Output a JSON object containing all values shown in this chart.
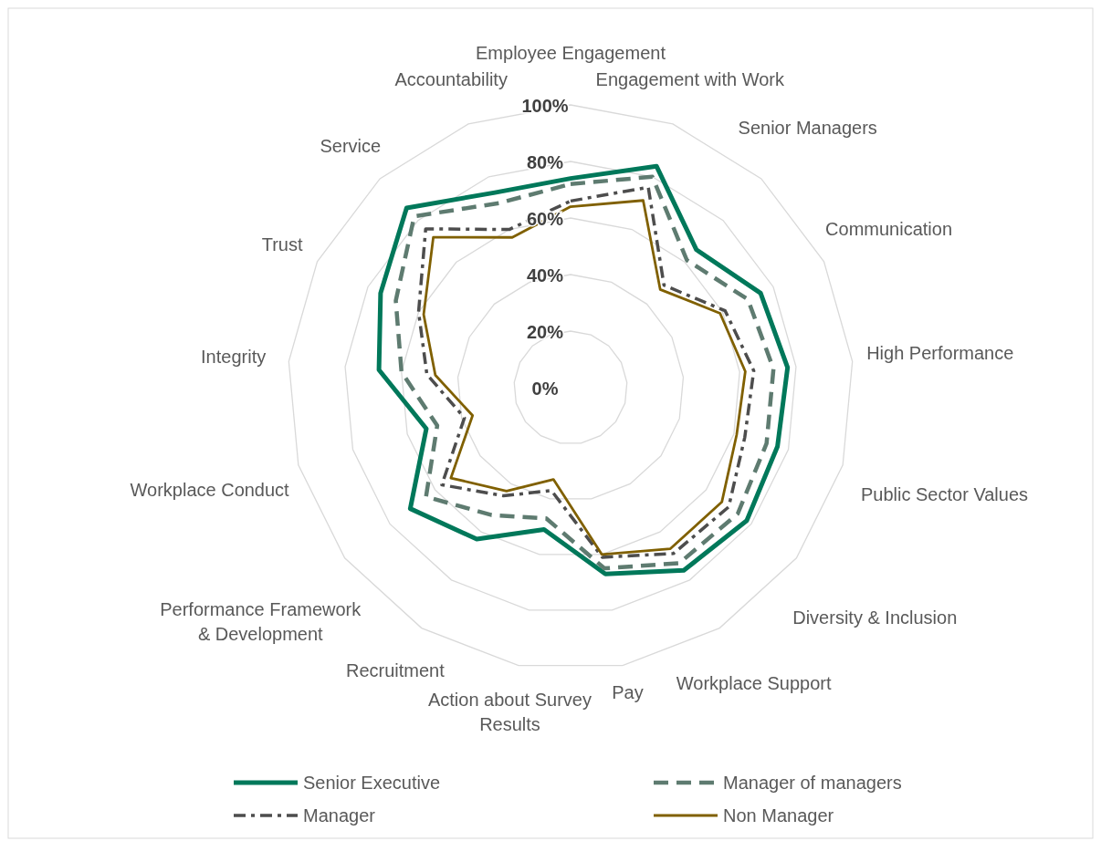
{
  "chart_data": {
    "type": "radar",
    "categories": [
      "Employee Engagement",
      "Engagement with Work",
      "Senior Managers",
      "Communication",
      "High Performance",
      "Public Sector Values",
      "Diversity & Inclusion",
      "Workplace Support",
      "Pay",
      "Action about Survey Results",
      "Recruitment",
      "Performance Framework & Development",
      "Workplace Conduct",
      "Integrity",
      "Trust",
      "Service",
      "Accountability"
    ],
    "series": [
      {
        "name": "Senior Executive",
        "color": "#00785a",
        "line_style": "solid",
        "values": [
          74,
          84,
          66,
          75,
          77,
          76,
          78,
          76,
          67,
          51,
          63,
          71,
          53,
          68,
          75,
          86,
          74
        ]
      },
      {
        "name": "Manager of managers",
        "color": "#5e7b70",
        "line_style": "dashed",
        "values": [
          72,
          80,
          61,
          70,
          72,
          72,
          74,
          73,
          65,
          47,
          53,
          64,
          49,
          60,
          69,
          82,
          70
        ]
      },
      {
        "name": "Manager",
        "color": "#4d4d4d",
        "line_style": "dashdot",
        "values": [
          66,
          76,
          49,
          61,
          65,
          64,
          70,
          69,
          61,
          37,
          45,
          57,
          39,
          51,
          60,
          76,
          60
        ]
      },
      {
        "name": "Non Manager",
        "color": "#806000",
        "line_style": "solid",
        "values": [
          64,
          71,
          47,
          59,
          62,
          61,
          67,
          67,
          60,
          33,
          43,
          53,
          36,
          48,
          58,
          72,
          57
        ]
      }
    ],
    "ylim": [
      0,
      100
    ],
    "yticks": [
      {
        "value": 0,
        "label": "0%"
      },
      {
        "value": 20,
        "label": "20%"
      },
      {
        "value": 40,
        "label": "40%"
      },
      {
        "value": 60,
        "label": "60%"
      },
      {
        "value": 80,
        "label": "80%"
      },
      {
        "value": 100,
        "label": "100%"
      }
    ],
    "grid": true,
    "legend": "bottom"
  }
}
